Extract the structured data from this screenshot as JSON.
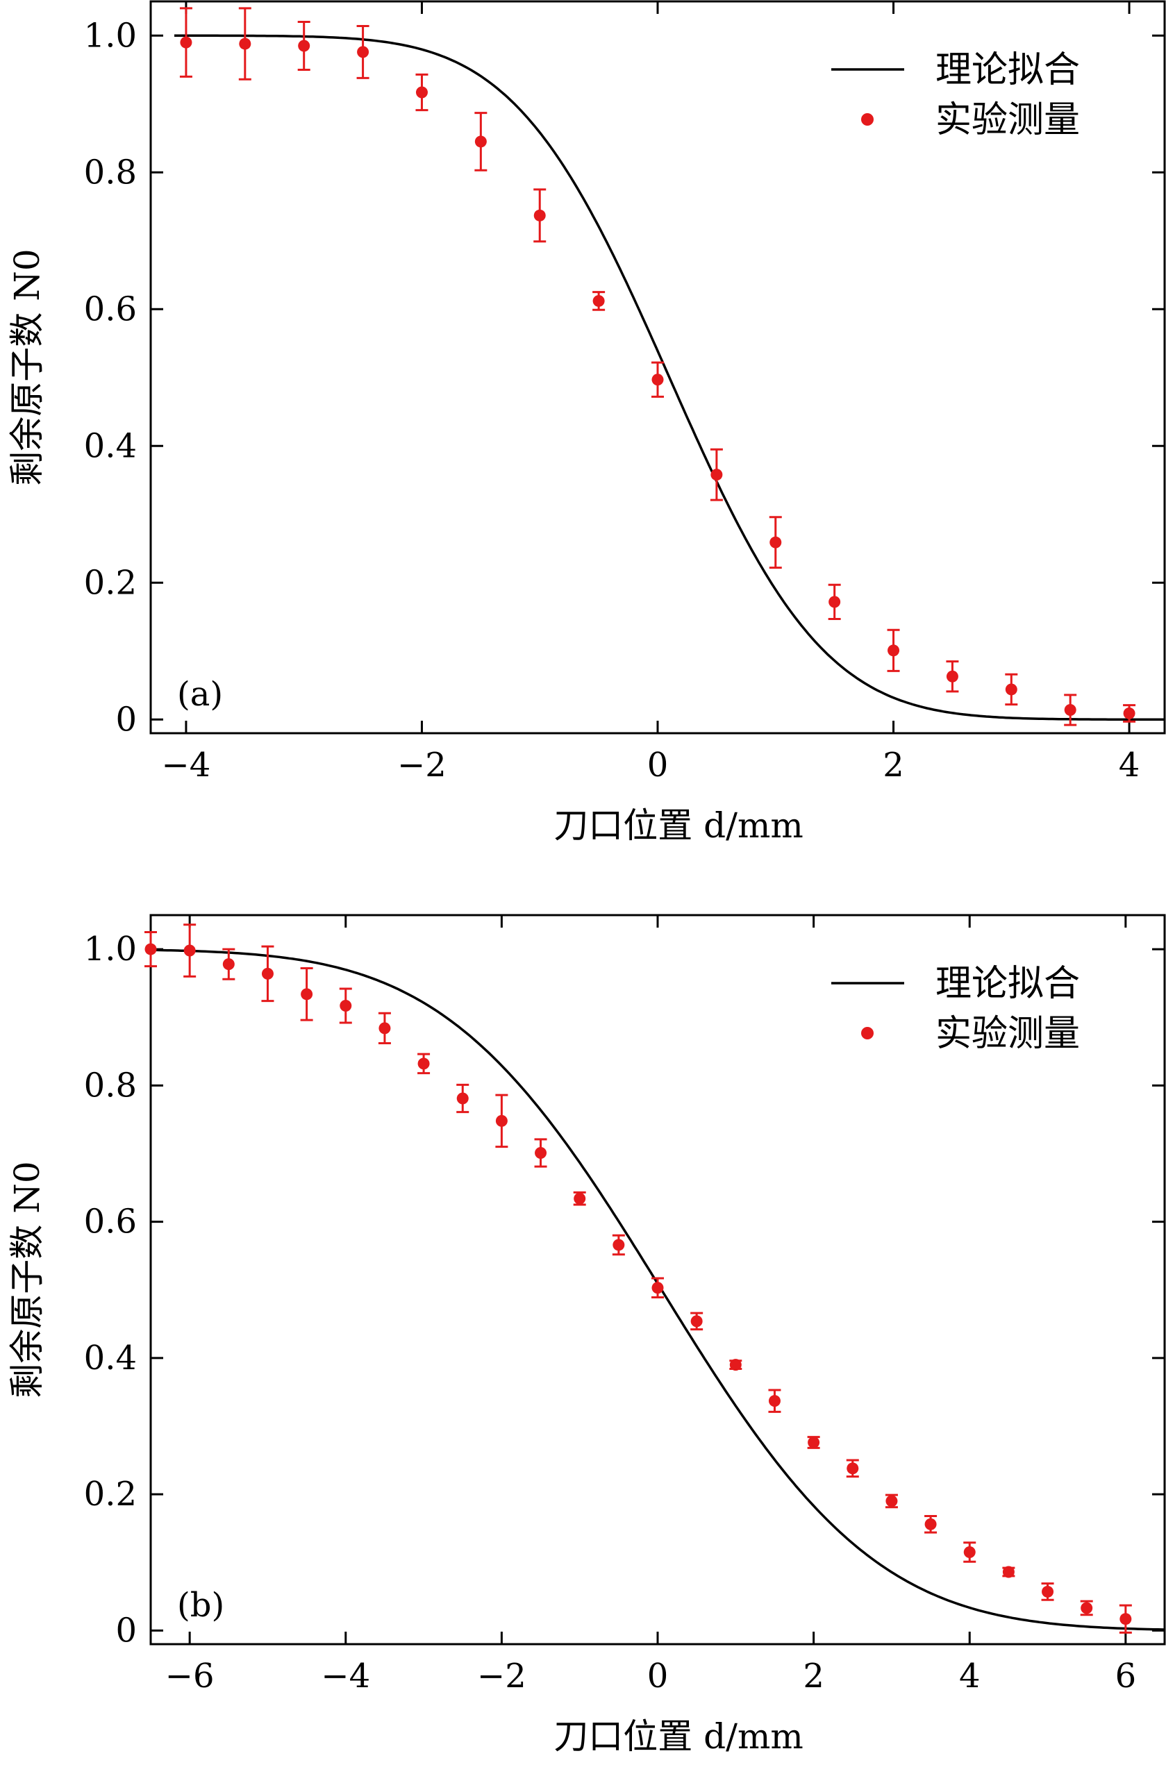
{
  "chart_data": [
    {
      "type": "scatter",
      "panel_label": "(a)",
      "xlabel": "刀口位置 d/mm",
      "ylabel": "剩余原子数 N0",
      "xlim": [
        -4.3,
        4.3
      ],
      "ylim": [
        -0.02,
        1.05
      ],
      "xticks": [
        -4,
        -2,
        0,
        2,
        4
      ],
      "xtick_labels": [
        "−4",
        "−2",
        "0",
        "2",
        "4"
      ],
      "yticks": [
        0,
        0.2,
        0.4,
        0.6,
        0.8,
        1.0
      ],
      "ytick_labels": [
        "0",
        "0.2",
        "0.4",
        "0.6",
        "0.8",
        "1.0"
      ],
      "legend_position": "top-right",
      "series": [
        {
          "name": "理论拟合",
          "kind": "line",
          "color": "#000000",
          "model": "erfc",
          "center": 0.1,
          "width": 1.45,
          "x_range": [
            -4.1,
            4.3
          ]
        },
        {
          "name": "实验测量",
          "kind": "scatter",
          "color": "#e41a1c",
          "x": [
            -4.0,
            -3.5,
            -3.0,
            -2.5,
            -2.0,
            -1.5,
            -1.0,
            -0.5,
            0.0,
            0.5,
            1.0,
            1.5,
            2.0,
            2.5,
            3.0,
            3.5,
            4.0
          ],
          "y": [
            0.99,
            0.988,
            0.985,
            0.976,
            0.917,
            0.845,
            0.737,
            0.612,
            0.497,
            0.358,
            0.259,
            0.172,
            0.101,
            0.063,
            0.044,
            0.014,
            0.009
          ],
          "err": [
            0.05,
            0.052,
            0.035,
            0.038,
            0.026,
            0.042,
            0.038,
            0.013,
            0.025,
            0.037,
            0.037,
            0.025,
            0.03,
            0.022,
            0.022,
            0.022,
            0.012
          ]
        }
      ]
    },
    {
      "type": "scatter",
      "panel_label": "(b)",
      "xlabel": "刀口位置 d/mm",
      "ylabel": "剩余原子数 N0",
      "xlim": [
        -6.5,
        6.5
      ],
      "ylim": [
        -0.02,
        1.05
      ],
      "xticks": [
        -6,
        -4,
        -2,
        0,
        2,
        4,
        6
      ],
      "xtick_labels": [
        "−6",
        "−4",
        "−2",
        "0",
        "2",
        "4",
        "6"
      ],
      "yticks": [
        0,
        0.2,
        0.4,
        0.6,
        0.8,
        1.0
      ],
      "ytick_labels": [
        "0",
        "0.2",
        "0.4",
        "0.6",
        "0.8",
        "1.0"
      ],
      "legend_position": "top-right",
      "series": [
        {
          "name": "理论拟合",
          "kind": "line",
          "color": "#000000",
          "model": "erfc",
          "center": 0.05,
          "width": 3.05,
          "x_range": [
            -6.5,
            6.5
          ]
        },
        {
          "name": "实验测量",
          "kind": "scatter",
          "color": "#e41a1c",
          "x": [
            -6.5,
            -6.0,
            -5.5,
            -5.0,
            -4.5,
            -4.0,
            -3.5,
            -3.0,
            -2.5,
            -2.0,
            -1.5,
            -1.0,
            -0.5,
            0.0,
            0.5,
            1.0,
            1.5,
            2.0,
            2.5,
            3.0,
            3.5,
            4.0,
            4.5,
            5.0,
            5.5,
            6.0
          ],
          "y": [
            1.0,
            0.998,
            0.978,
            0.964,
            0.934,
            0.917,
            0.884,
            0.832,
            0.781,
            0.748,
            0.701,
            0.634,
            0.566,
            0.503,
            0.454,
            0.39,
            0.337,
            0.276,
            0.238,
            0.19,
            0.156,
            0.115,
            0.086,
            0.057,
            0.033,
            0.017
          ],
          "err": [
            0.025,
            0.038,
            0.022,
            0.04,
            0.038,
            0.025,
            0.022,
            0.014,
            0.02,
            0.038,
            0.02,
            0.009,
            0.014,
            0.014,
            0.012,
            0.006,
            0.016,
            0.008,
            0.012,
            0.009,
            0.012,
            0.014,
            0.006,
            0.012,
            0.01,
            0.02
          ]
        }
      ]
    }
  ]
}
